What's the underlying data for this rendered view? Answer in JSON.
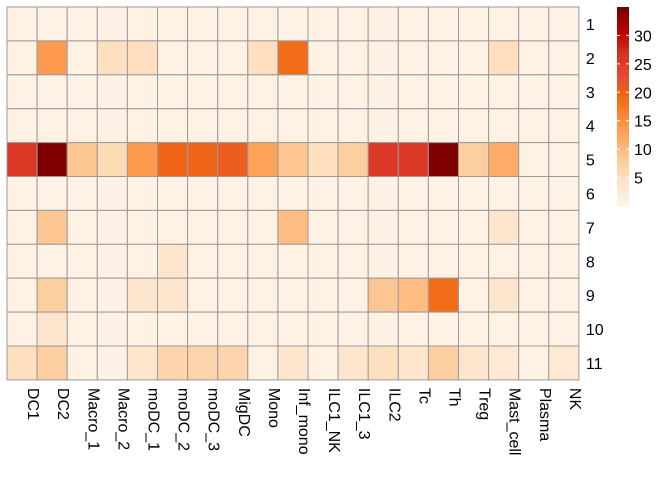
{
  "chart_data": {
    "type": "heatmap",
    "title": "",
    "xlabel": "",
    "ylabel": "",
    "columns": [
      "DC1",
      "DC2",
      "Macro_1",
      "Macro_2",
      "moDC_1",
      "moDC_2",
      "moDC_3",
      "MigDC",
      "Mono",
      "Inf_mono",
      "ILC1_NK",
      "ILC1_3",
      "ILC2",
      "Tc",
      "Th",
      "Treg",
      "Mast_cell",
      "Plasma",
      "NK"
    ],
    "rows": [
      "1",
      "2",
      "3",
      "4",
      "5",
      "6",
      "7",
      "8",
      "9",
      "10",
      "11"
    ],
    "values": [
      [
        1,
        1,
        1,
        1,
        1,
        1,
        1,
        1,
        1,
        1,
        1,
        1,
        1,
        1,
        1,
        1,
        1,
        1,
        1
      ],
      [
        1,
        14,
        1,
        5,
        5,
        1,
        1,
        1,
        5,
        19,
        1,
        1,
        1,
        1,
        1,
        1,
        5,
        1,
        1
      ],
      [
        1,
        1,
        1,
        1,
        1,
        1,
        1,
        1,
        1,
        1,
        1,
        1,
        1,
        1,
        1,
        1,
        1,
        1,
        1
      ],
      [
        1,
        1,
        1,
        1,
        1,
        1,
        1,
        1,
        1,
        1,
        1,
        1,
        1,
        1,
        1,
        1,
        1,
        1,
        1
      ],
      [
        26,
        35,
        9,
        6,
        14,
        20,
        20,
        21,
        13,
        9,
        5,
        8,
        26,
        26,
        35,
        8,
        12,
        1,
        1
      ],
      [
        1,
        1,
        1,
        1,
        1,
        1,
        1,
        1,
        1,
        1,
        1,
        1,
        1,
        1,
        1,
        1,
        1,
        1,
        1
      ],
      [
        1,
        9,
        1,
        1,
        1,
        1,
        1,
        1,
        1,
        10,
        1,
        1,
        1,
        1,
        1,
        1,
        4,
        1,
        1
      ],
      [
        1,
        1,
        1,
        1,
        1,
        4,
        1,
        1,
        1,
        1,
        1,
        1,
        1,
        1,
        1,
        1,
        1,
        1,
        1
      ],
      [
        1,
        8,
        1,
        1,
        4,
        4,
        1,
        1,
        1,
        1,
        1,
        1,
        9,
        10,
        19,
        1,
        4,
        1,
        1
      ],
      [
        1,
        4,
        1,
        1,
        1,
        1,
        1,
        1,
        1,
        1,
        1,
        1,
        1,
        1,
        1,
        1,
        1,
        1,
        1
      ],
      [
        5,
        8,
        1,
        1,
        4,
        7,
        7,
        7,
        1,
        4,
        1,
        4,
        5,
        4,
        8,
        4,
        3,
        1,
        3
      ]
    ],
    "colorbar": {
      "ticks": [
        5,
        10,
        15,
        20,
        25,
        30
      ],
      "range": [
        0,
        35
      ],
      "colors": [
        "#fff5eb",
        "#fee6ce",
        "#fdd0a2",
        "#fdae6b",
        "#fd8d3c",
        "#f16913",
        "#e34a33",
        "#d7301f",
        "#b30000",
        "#7f0000"
      ]
    },
    "legend_position": "right",
    "grid": true
  }
}
